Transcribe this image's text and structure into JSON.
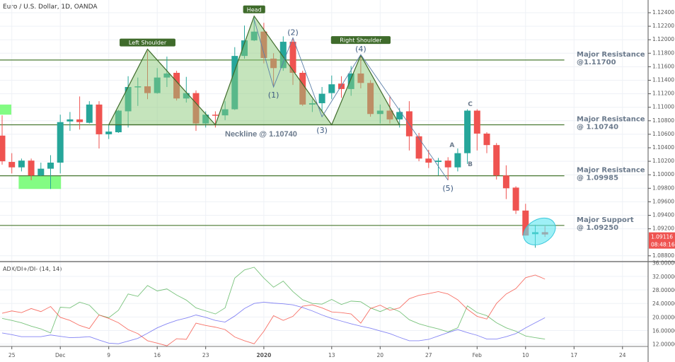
{
  "header": {
    "title": "Euro / U.S. Dollar, 1D, OANDA"
  },
  "colors": {
    "up": "#26a69a",
    "down": "#ef5350",
    "pattern_fill": "#8cc97a",
    "pattern_stroke": "#3f6b2b",
    "level_line": "#4a7a32",
    "wave_line": "#5b7fa8",
    "highlight_zone": "#6dfc6d",
    "ellipse": "#5ee6f0",
    "di_plus": "#4caf50",
    "di_minus": "#f44336",
    "adx": "#5c5cf0"
  },
  "chart_data": [
    {
      "type": "candlestick",
      "title": "Euro / U.S. Dollar, 1D, OANDA",
      "ylim": [
        1.0876,
        1.125
      ],
      "grid": true,
      "y_ticks": [
        "1.12400",
        "1.12200",
        "1.12000",
        "1.11800",
        "1.11600",
        "1.11400",
        "1.11200",
        "1.11000",
        "1.10800",
        "1.10600",
        "1.10400",
        "1.10200",
        "1.10000",
        "1.09800",
        "1.09600",
        "1.09400",
        "1.09200",
        "1.08800"
      ],
      "x_ticks": [
        {
          "label": "25",
          "date": "2019-11-25"
        },
        {
          "label": "Dec",
          "date": "2019-12-02"
        },
        {
          "label": "9",
          "date": "2019-12-09"
        },
        {
          "label": "16",
          "date": "2019-12-16"
        },
        {
          "label": "23",
          "date": "2019-12-23"
        },
        {
          "label": "2020",
          "date": "2020-01-02"
        },
        {
          "label": "13",
          "date": "2020-01-13"
        },
        {
          "label": "20",
          "date": "2020-01-20"
        },
        {
          "label": "27",
          "date": "2020-01-27"
        },
        {
          "label": "Feb",
          "date": "2020-02-03"
        },
        {
          "label": "10",
          "date": "2020-02-10"
        },
        {
          "label": "17",
          "date": "2020-02-17"
        },
        {
          "label": "24",
          "date": "2020-02-24"
        }
      ],
      "last_price": "1.09116",
      "countdown": "08:48:16",
      "candles_columns": [
        "date",
        "open",
        "high",
        "low",
        "close"
      ],
      "candles": [
        [
          "2019-11-22",
          1.1058,
          1.1088,
          1.1015,
          1.102
        ],
        [
          "2019-11-25",
          1.1019,
          1.1032,
          1.1002,
          1.1011
        ],
        [
          "2019-11-26",
          1.1011,
          1.1024,
          1.1005,
          1.1021
        ],
        [
          "2019-11-27",
          1.1021,
          1.1024,
          1.0992,
          1.0999
        ],
        [
          "2019-11-28",
          1.0999,
          1.1018,
          1.0998,
          1.1009
        ],
        [
          "2019-11-29",
          1.1009,
          1.1029,
          1.0979,
          1.1018
        ],
        [
          "2019-12-02",
          1.1018,
          1.1089,
          1.1002,
          1.1078
        ],
        [
          "2019-12-03",
          1.1079,
          1.1093,
          1.1065,
          1.1082
        ],
        [
          "2019-12-04",
          1.1082,
          1.1116,
          1.1067,
          1.1078
        ],
        [
          "2019-12-05",
          1.1077,
          1.1109,
          1.1076,
          1.1104
        ],
        [
          "2019-12-06",
          1.1104,
          1.1109,
          1.1039,
          1.106
        ],
        [
          "2019-12-09",
          1.106,
          1.1074,
          1.1053,
          1.1064
        ],
        [
          "2019-12-10",
          1.1063,
          1.1096,
          1.1062,
          1.1095
        ],
        [
          "2019-12-11",
          1.1094,
          1.1146,
          1.107,
          1.113
        ],
        [
          "2019-12-12",
          1.113,
          1.1144,
          1.1102,
          1.1131
        ],
        [
          "2019-12-13",
          1.1131,
          1.1183,
          1.1112,
          1.1121
        ],
        [
          "2019-12-16",
          1.1121,
          1.1158,
          1.112,
          1.1144
        ],
        [
          "2019-12-17",
          1.1144,
          1.1175,
          1.113,
          1.115
        ],
        [
          "2019-12-18",
          1.1151,
          1.1154,
          1.111,
          1.1113
        ],
        [
          "2019-12-19",
          1.1113,
          1.1145,
          1.1107,
          1.1121
        ],
        [
          "2019-12-20",
          1.1121,
          1.1125,
          1.1065,
          1.1076
        ],
        [
          "2019-12-23",
          1.1076,
          1.1094,
          1.107,
          1.1089
        ],
        [
          "2019-12-24",
          1.1089,
          1.1094,
          1.107,
          1.1088
        ],
        [
          "2019-12-26",
          1.1088,
          1.1109,
          1.1081,
          1.1097
        ],
        [
          "2019-12-27",
          1.1097,
          1.1189,
          1.1096,
          1.1176
        ],
        [
          "2019-12-30",
          1.1176,
          1.1221,
          1.1172,
          1.1199
        ],
        [
          "2019-12-31",
          1.1199,
          1.1233,
          1.1198,
          1.1212
        ],
        [
          "2020-01-02",
          1.1212,
          1.1225,
          1.1165,
          1.1173
        ],
        [
          "2020-01-03",
          1.1172,
          1.118,
          1.113,
          1.1158
        ],
        [
          "2020-01-06",
          1.1158,
          1.1205,
          1.1154,
          1.1197
        ],
        [
          "2020-01-07",
          1.1197,
          1.1201,
          1.1133,
          1.1151
        ],
        [
          "2020-01-08",
          1.1151,
          1.1154,
          1.1102,
          1.1104
        ],
        [
          "2020-01-09",
          1.1104,
          1.1112,
          1.1093,
          1.1106
        ],
        [
          "2020-01-10",
          1.1106,
          1.113,
          1.1093,
          1.112
        ],
        [
          "2020-01-13",
          1.1121,
          1.1147,
          1.1112,
          1.1134
        ],
        [
          "2020-01-14",
          1.1135,
          1.1146,
          1.1114,
          1.1127
        ],
        [
          "2020-01-15",
          1.1127,
          1.1161,
          1.1117,
          1.115
        ],
        [
          "2020-01-16",
          1.115,
          1.1175,
          1.1128,
          1.1136
        ],
        [
          "2020-01-17",
          1.1136,
          1.114,
          1.1086,
          1.109
        ],
        [
          "2020-01-20",
          1.109,
          1.1104,
          1.1076,
          1.1095
        ],
        [
          "2020-01-21",
          1.1095,
          1.1117,
          1.1076,
          1.1082
        ],
        [
          "2020-01-22",
          1.1082,
          1.1099,
          1.107,
          1.1093
        ],
        [
          "2020-01-23",
          1.1094,
          1.1109,
          1.1036,
          1.1057
        ],
        [
          "2020-01-24",
          1.1057,
          1.1062,
          1.102,
          1.1024
        ],
        [
          "2020-01-27",
          1.1024,
          1.1037,
          1.101,
          1.1018
        ],
        [
          "2020-01-28",
          1.1019,
          1.1025,
          1.0999,
          1.1021
        ],
        [
          "2020-01-29",
          1.1021,
          1.1026,
          1.0992,
          1.1011
        ],
        [
          "2020-01-30",
          1.1011,
          1.1039,
          1.1005,
          1.1032
        ],
        [
          "2020-01-31",
          1.1032,
          1.1097,
          1.1016,
          1.1095
        ],
        [
          "2020-02-03",
          1.1095,
          1.1097,
          1.1036,
          1.1061
        ],
        [
          "2020-02-04",
          1.1061,
          1.1063,
          1.1032,
          1.1044
        ],
        [
          "2020-02-05",
          1.1044,
          1.1047,
          1.0993,
          1.0999
        ],
        [
          "2020-02-06",
          1.0999,
          1.1014,
          1.0964,
          1.098
        ],
        [
          "2020-02-07",
          1.0981,
          1.0983,
          1.0942,
          1.0947
        ],
        [
          "2020-02-10",
          1.0947,
          1.0957,
          1.091,
          1.091
        ],
        [
          "2020-02-11",
          1.0912,
          1.0926,
          1.0892,
          1.0915
        ],
        [
          "2020-02-12",
          1.0915,
          1.0924,
          1.0908,
          1.09116
        ]
      ],
      "levels": [
        {
          "price": 1.117,
          "label_line1": "Major Resistance",
          "label_line2": "@1.11700",
          "end": "2020-02-14"
        },
        {
          "price": 1.1074,
          "label_line1": "Major Resistance",
          "label_line2": "@ 1.10740",
          "end": "2020-02-14"
        },
        {
          "price": 1.09985,
          "label_line1": "Major Resistance",
          "label_line2": "@ 1.09985",
          "end": "2020-02-14"
        },
        {
          "price": 1.0925,
          "label_line1": "Major Support",
          "label_line2": "@ 1.09250",
          "end": "2020-02-14"
        }
      ],
      "neckline_label": "Neckline @ 1.10740",
      "patterns": [
        {
          "label": "Left Shoulder",
          "points": [
            [
              "2019-12-09",
              1.1074
            ],
            [
              "2019-12-13",
              1.1186
            ],
            [
              "2019-12-24",
              1.1074
            ]
          ]
        },
        {
          "label": "Head",
          "points": [
            [
              "2019-12-24",
              1.1074
            ],
            [
              "2019-12-31",
              1.1235
            ],
            [
              "2020-01-13",
              1.1074
            ]
          ]
        },
        {
          "label": "Right Shoulder",
          "points": [
            [
              "2020-01-13",
              1.1074
            ],
            [
              "2020-01-16",
              1.1177
            ],
            [
              "2020-01-22",
              1.1074
            ]
          ]
        }
      ],
      "waves": [
        {
          "label": "",
          "date": "2019-12-31",
          "price": 1.123
        },
        {
          "label": "(1)",
          "date": "2020-01-03",
          "price": 1.113
        },
        {
          "label": "(2)",
          "date": "2020-01-07",
          "price": 1.1203
        },
        {
          "label": "(3)",
          "date": "2020-01-10",
          "price": 1.1086
        },
        {
          "label": "(4)",
          "date": "2020-01-16",
          "price": 1.1178
        },
        {
          "label": "(5)",
          "date": "2020-01-29",
          "price": 1.0992
        }
      ],
      "abc_labels": [
        {
          "label": "A",
          "date": "2020-01-30",
          "price": 1.1041
        },
        {
          "label": "B",
          "date": "2020-01-31",
          "price": 1.1013
        },
        {
          "label": "C",
          "date": "2020-01-31",
          "price": 1.1102
        }
      ],
      "zones": [
        {
          "start": "2019-11-22",
          "end": "2019-11-22",
          "top": 1.1104,
          "bottom": 1.1089
        },
        {
          "start": "2019-11-26",
          "end": "2019-12-02",
          "top": 1.0998,
          "bottom": 1.0979
        }
      ],
      "highlight": {
        "date": "2020-02-11",
        "price": 1.0916
      }
    },
    {
      "type": "line",
      "title": "ADX/DI+/DI- (14, 14)",
      "ylim": [
        10,
        36
      ],
      "y_ticks": [
        "36.00000",
        "32.00000",
        "28.00000",
        "24.00000",
        "20.00000",
        "16.00000",
        "12.00000"
      ],
      "series": [
        {
          "key": "di_plus",
          "values": [
            19.6,
            19.0,
            18.3,
            17.3,
            16.5,
            15.3,
            22.9,
            22.7,
            24.4,
            23.5,
            20.6,
            19.8,
            22.0,
            26.8,
            26.1,
            29.3,
            27.7,
            28.3,
            26.5,
            25.0,
            22.7,
            21.8,
            20.9,
            22.7,
            31.5,
            33.9,
            34.7,
            31.5,
            28.8,
            30.6,
            27.5,
            25.1,
            24.0,
            23.8,
            25.2,
            23.7,
            24.7,
            24.5,
            22.7,
            21.6,
            22.8,
            21.6,
            19.2,
            18.0,
            17.2,
            16.5,
            15.6,
            16.8,
            23.3,
            21.3,
            20.4,
            18.3,
            16.8,
            15.8,
            14.4,
            13.9,
            13.5
          ]
        },
        {
          "key": "di_minus",
          "values": [
            21.1,
            21.8,
            21.3,
            22.5,
            21.6,
            23.1,
            19.9,
            19.0,
            17.5,
            16.6,
            20.6,
            19.6,
            18.3,
            16.3,
            15.1,
            13.0,
            12.3,
            11.5,
            13.6,
            13.4,
            18.2,
            17.5,
            17.0,
            16.3,
            14.1,
            13.0,
            12.1,
            15.8,
            20.4,
            19.0,
            20.2,
            23.2,
            23.6,
            22.7,
            21.5,
            21.3,
            20.9,
            18.2,
            22.5,
            23.5,
            22.0,
            22.7,
            25.4,
            26.4,
            26.9,
            27.5,
            26.8,
            25.1,
            22.3,
            20.2,
            19.4,
            24.0,
            26.8,
            28.4,
            31.6,
            32.4,
            31.2
          ]
        },
        {
          "key": "adx",
          "values": [
            15.3,
            14.8,
            14.2,
            14.2,
            14.2,
            14.7,
            14.3,
            13.9,
            14.0,
            14.2,
            13.2,
            12.3,
            12.1,
            12.9,
            13.7,
            15.2,
            16.8,
            18.0,
            19.0,
            19.7,
            20.6,
            19.9,
            19.0,
            18.5,
            20.3,
            22.5,
            24.0,
            24.4,
            24.1,
            23.9,
            23.6,
            22.8,
            21.8,
            20.6,
            19.6,
            18.8,
            18.0,
            17.3,
            16.7,
            15.9,
            15.1,
            14.0,
            13.0,
            13.0,
            13.4,
            14.4,
            15.4,
            16.3,
            15.4,
            14.6,
            13.5,
            13.5,
            14.2,
            15.1,
            16.8,
            18.3,
            19.8
          ]
        }
      ]
    }
  ]
}
